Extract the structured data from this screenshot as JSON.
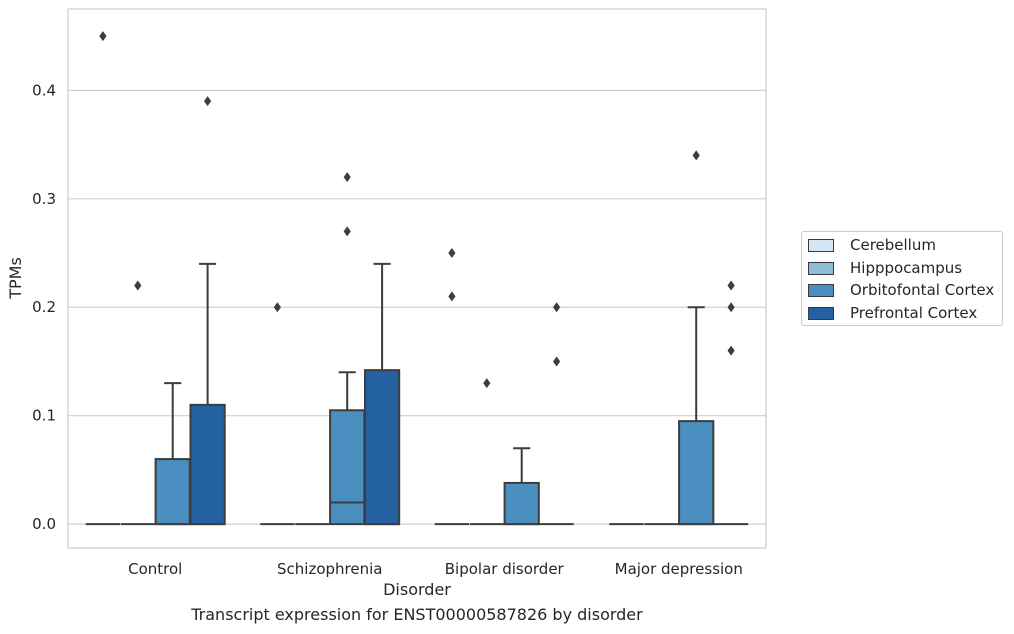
{
  "caption": "Transcript expression for ENST00000587826 by disorder",
  "colors": {
    "Cerebellum": "#d6e5f3",
    "Hipppocampus": "#91bcd9",
    "Orbitofontal Cortex": "#4a8fc0",
    "Prefrontal Cortex": "#2461a1"
  },
  "chart_data": {
    "type": "box",
    "xlabel": "Disorder",
    "ylabel": "TPMs",
    "categories": [
      "Control",
      "Schizophrenia",
      "Bipolar disorder",
      "Major depression"
    ],
    "ylim": [
      -0.022,
      0.475
    ],
    "yticks": [
      0.0,
      0.1,
      0.2,
      0.3,
      0.4
    ],
    "ytick_labels": [
      "0.0",
      "0.1",
      "0.2",
      "0.3",
      "0.4"
    ],
    "grid": "horizontal",
    "legend_position": "outside-right",
    "series": [
      {
        "name": "Cerebellum",
        "boxes": [
          {
            "q1": 0,
            "median": 0,
            "q3": 0,
            "whisker_low": 0,
            "whisker_high": 0,
            "outliers": [
              0.45
            ]
          },
          {
            "q1": 0,
            "median": 0,
            "q3": 0,
            "whisker_low": 0,
            "whisker_high": 0,
            "outliers": [
              0.2
            ]
          },
          {
            "q1": 0,
            "median": 0,
            "q3": 0,
            "whisker_low": 0,
            "whisker_high": 0,
            "outliers": [
              0.25,
              0.21
            ]
          },
          {
            "q1": 0,
            "median": 0,
            "q3": 0,
            "whisker_low": 0,
            "whisker_high": 0,
            "outliers": []
          }
        ]
      },
      {
        "name": "Hipppocampus",
        "boxes": [
          {
            "q1": 0,
            "median": 0,
            "q3": 0,
            "whisker_low": 0,
            "whisker_high": 0,
            "outliers": [
              0.22
            ]
          },
          {
            "q1": 0,
            "median": 0,
            "q3": 0,
            "whisker_low": 0,
            "whisker_high": 0,
            "outliers": []
          },
          {
            "q1": 0,
            "median": 0,
            "q3": 0,
            "whisker_low": 0,
            "whisker_high": 0,
            "outliers": [
              0.13
            ]
          },
          {
            "q1": 0,
            "median": 0,
            "q3": 0,
            "whisker_low": 0,
            "whisker_high": 0,
            "outliers": []
          }
        ]
      },
      {
        "name": "Orbitofontal Cortex",
        "boxes": [
          {
            "q1": 0,
            "median": 0,
            "q3": 0.06,
            "whisker_low": 0,
            "whisker_high": 0.13,
            "outliers": []
          },
          {
            "q1": 0,
            "median": 0.02,
            "q3": 0.105,
            "whisker_low": 0,
            "whisker_high": 0.14,
            "outliers": [
              0.32,
              0.27
            ]
          },
          {
            "q1": 0,
            "median": 0,
            "q3": 0.038,
            "whisker_low": 0,
            "whisker_high": 0.07,
            "outliers": []
          },
          {
            "q1": 0,
            "median": 0,
            "q3": 0.095,
            "whisker_low": 0,
            "whisker_high": 0.2,
            "outliers": [
              0.34
            ]
          }
        ]
      },
      {
        "name": "Prefrontal Cortex",
        "boxes": [
          {
            "q1": 0,
            "median": 0,
            "q3": 0.11,
            "whisker_low": 0,
            "whisker_high": 0.24,
            "outliers": [
              0.39
            ]
          },
          {
            "q1": 0,
            "median": 0,
            "q3": 0.142,
            "whisker_low": 0,
            "whisker_high": 0.24,
            "outliers": []
          },
          {
            "q1": 0,
            "median": 0,
            "q3": 0,
            "whisker_low": 0,
            "whisker_high": 0,
            "outliers": [
              0.2,
              0.15
            ]
          },
          {
            "q1": 0,
            "median": 0,
            "q3": 0,
            "whisker_low": 0,
            "whisker_high": 0,
            "outliers": [
              0.22,
              0.2,
              0.16
            ]
          }
        ]
      }
    ]
  }
}
